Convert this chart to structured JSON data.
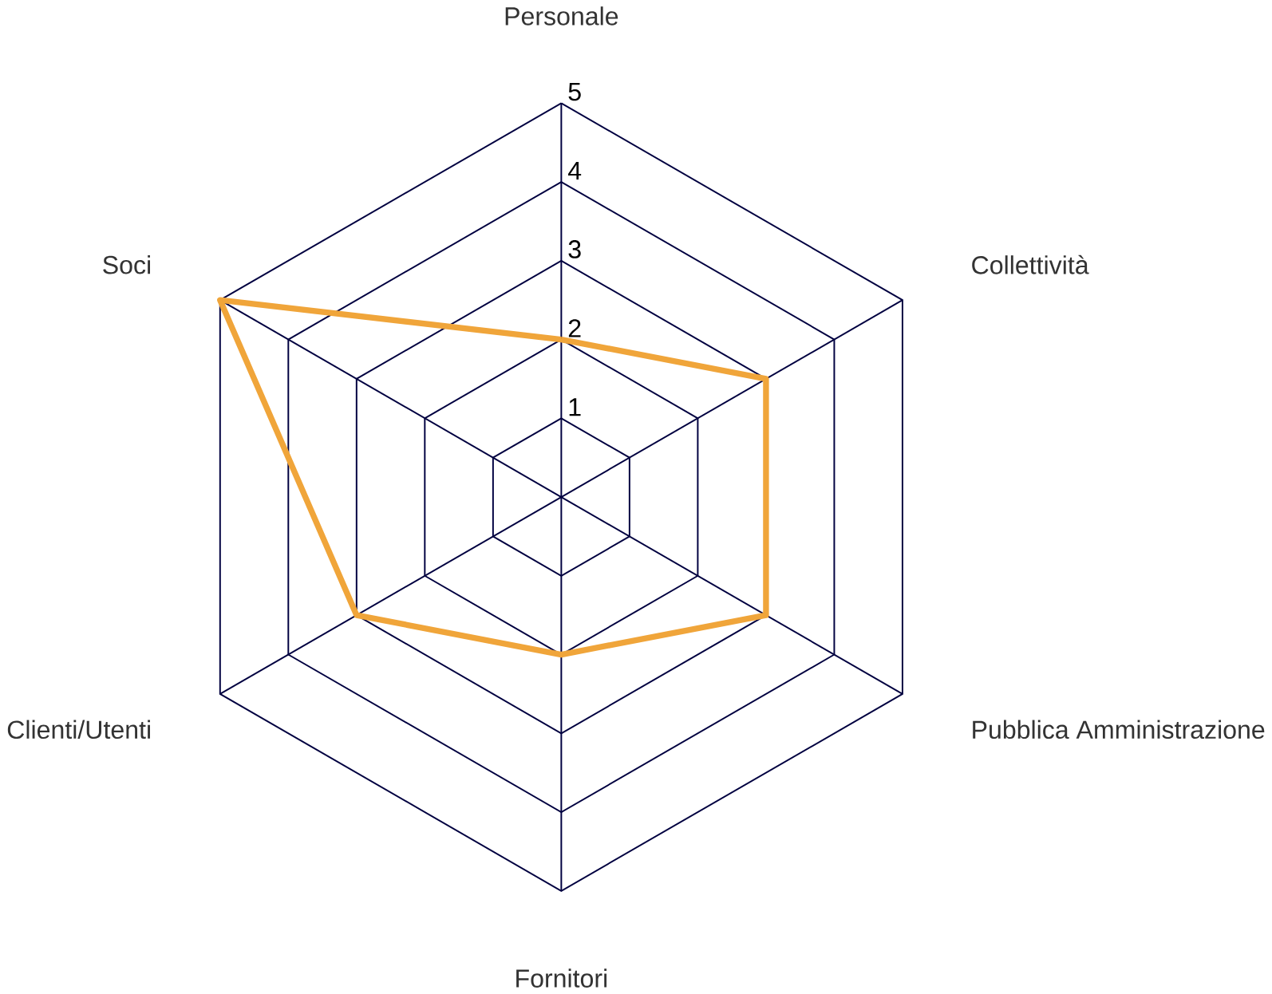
{
  "chart_data": {
    "type": "radar",
    "categories": [
      "Personale",
      "Collettività",
      "Pubblica Amministrazione",
      "Fornitori",
      "Clienti/Utenti",
      "Soci"
    ],
    "series": [
      {
        "color": "#f0a53a",
        "values": [
          2,
          3,
          3,
          2,
          3,
          5
        ]
      }
    ],
    "ylim": [
      0,
      5
    ],
    "yticks": [
      1,
      2,
      3,
      4,
      5
    ],
    "grid": true
  }
}
